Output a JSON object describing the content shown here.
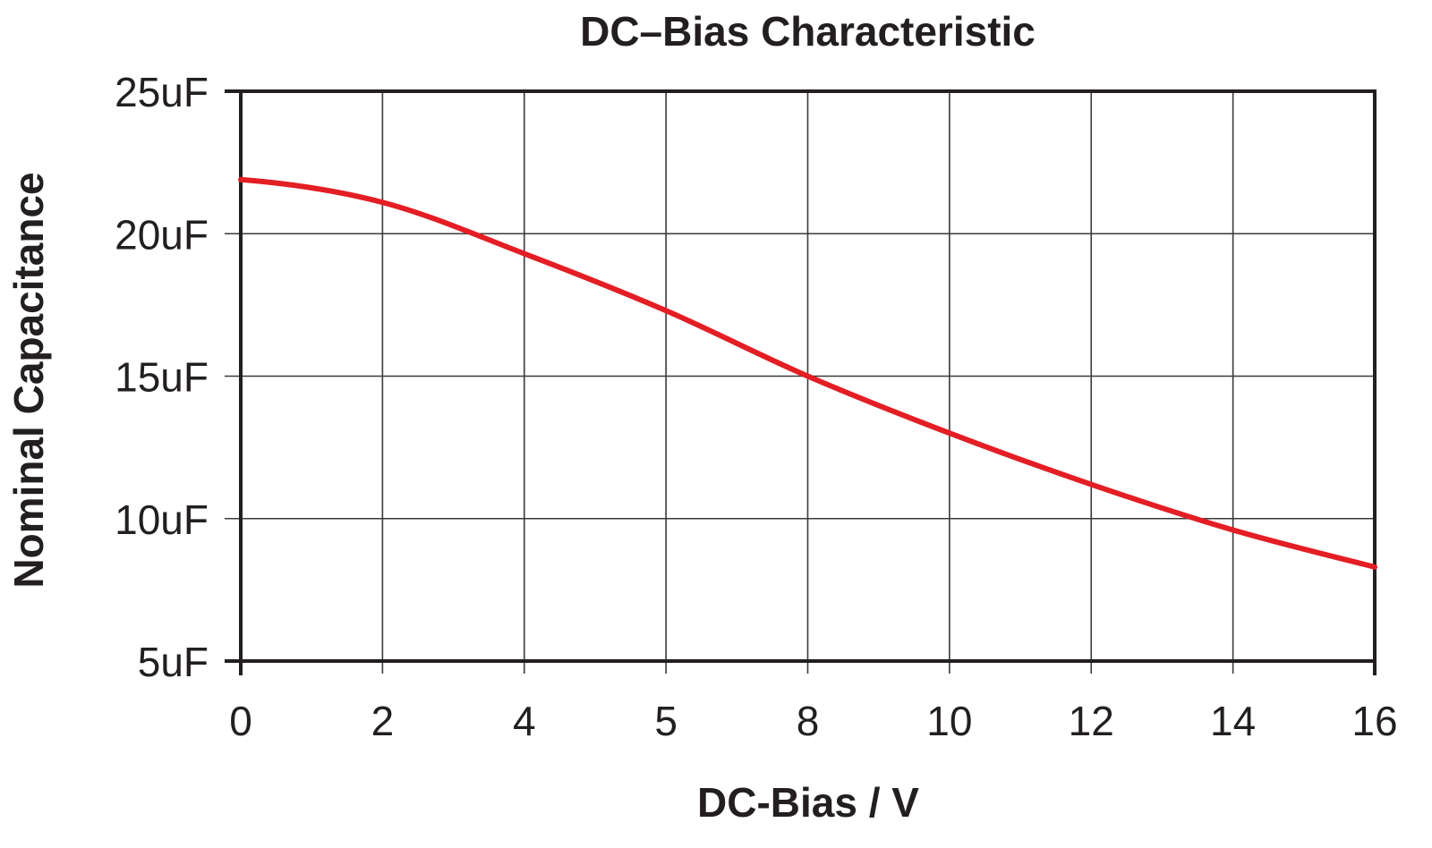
{
  "chart_data": {
    "type": "line",
    "title": "DC–Bias Characteristic",
    "xlabel": "DC-Bias / V",
    "ylabel": "Nominal Capacitance",
    "x_tick_labels": [
      "0",
      "2",
      "4",
      "5",
      "8",
      "10",
      "12",
      "14",
      "16"
    ],
    "y_tick_labels": [
      "5uF",
      "10uF",
      "15uF",
      "20uF",
      "25uF"
    ],
    "ylim": [
      5,
      25
    ],
    "grid": true,
    "legend": null,
    "series": [
      {
        "name": "Nominal Capacitance",
        "color": "#e31e24",
        "x_labels": [
          "0",
          "2",
          "4",
          "5",
          "8",
          "10",
          "12",
          "14",
          "16"
        ],
        "values": [
          21.9,
          21.1,
          19.3,
          17.3,
          15.0,
          13.0,
          11.2,
          9.6,
          8.3
        ]
      }
    ]
  },
  "labels": {
    "title": "DC–Bias Characteristic",
    "xlabel": "DC-Bias / V",
    "ylabel": "Nominal Capacitance"
  },
  "colors": {
    "curve": "#e31e24",
    "axis": "#231f20",
    "grid": "#3a3a3a"
  }
}
